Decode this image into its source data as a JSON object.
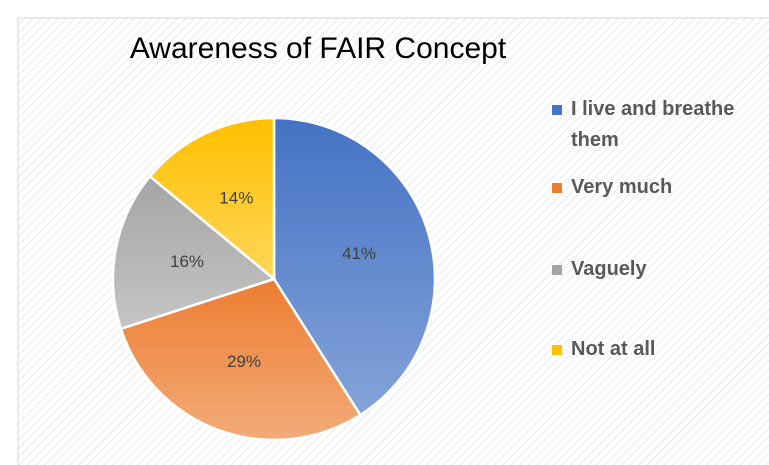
{
  "chart_data": {
    "type": "pie",
    "title": "Awareness of FAIR Concept",
    "categories": [
      "I live and breathe them",
      "Very much",
      "Vaguely",
      "Not at all"
    ],
    "values": [
      41,
      29,
      16,
      14
    ],
    "value_labels": [
      "41%",
      "29%",
      "16%",
      "14%"
    ],
    "colors": [
      "#4472c4",
      "#ed7d31",
      "#a5a5a5",
      "#ffc000"
    ],
    "legend": "right"
  }
}
